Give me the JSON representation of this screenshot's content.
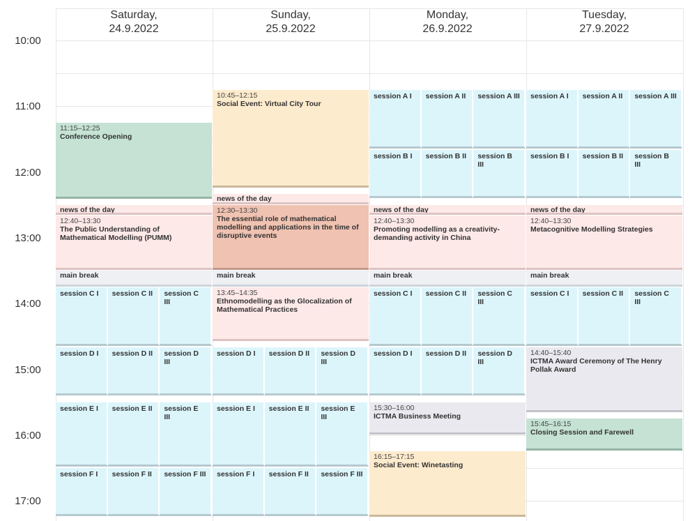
{
  "hours": [
    "10:00",
    "11:00",
    "12:00",
    "13:00",
    "14:00",
    "15:00",
    "16:00",
    "17:00"
  ],
  "days": [
    {
      "weekday": "Saturday,",
      "date": "24.9.2022"
    },
    {
      "weekday": "Sunday,",
      "date": "25.9.2022"
    },
    {
      "weekday": "Monday,",
      "date": "26.9.2022"
    },
    {
      "weekday": "Tuesday,",
      "date": "27.9.2022"
    }
  ],
  "events": [
    {
      "day": 0,
      "start": "11:15",
      "end": "12:25",
      "time": "11:15–12:25",
      "title": "Conference Opening",
      "color": "green"
    },
    {
      "day": 0,
      "start": "12:30",
      "end": "12:40",
      "time": "",
      "title": "news of the day",
      "color": "pink"
    },
    {
      "day": 0,
      "start": "12:40",
      "end": "13:30",
      "time": "12:40–13:30",
      "title": "The Public Understanding of Mathematical Modelling (PUMM)",
      "color": "pink"
    },
    {
      "day": 0,
      "start": "13:30",
      "end": "13:45",
      "time": "",
      "title": "main break",
      "color": "lightgray"
    },
    {
      "day": 1,
      "start": "10:45",
      "end": "12:15",
      "time": "10:45–12:15",
      "title": "Social Event: Virtual City Tour",
      "color": "orange"
    },
    {
      "day": 1,
      "start": "12:20",
      "end": "12:30",
      "time": "",
      "title": "news of the day",
      "color": "pink"
    },
    {
      "day": 1,
      "start": "12:30",
      "end": "13:30",
      "time": "12:30–13:30",
      "title": "The essential role of mathematical modelling and applications in the time of disruptive events",
      "color": "salmon"
    },
    {
      "day": 1,
      "start": "13:30",
      "end": "13:45",
      "time": "",
      "title": "main break",
      "color": "lightgray"
    },
    {
      "day": 1,
      "start": "13:45",
      "end": "14:35",
      "time": "13:45–14:35",
      "title": "Ethnomodelling as the Glocalization of Mathematical Practices",
      "color": "pink"
    },
    {
      "day": 2,
      "start": "12:30",
      "end": "12:40",
      "time": "",
      "title": "news of the day",
      "color": "pink"
    },
    {
      "day": 2,
      "start": "12:40",
      "end": "13:30",
      "time": "12:40–13:30",
      "title": "Promoting modelling as a creativity-demanding activity in China",
      "color": "pink"
    },
    {
      "day": 2,
      "start": "13:30",
      "end": "13:45",
      "time": "",
      "title": "main break",
      "color": "lightgray"
    },
    {
      "day": 2,
      "start": "15:30",
      "end": "16:00",
      "time": "15:30–16:00",
      "title": "ICTMA Business Meeting",
      "color": "gray"
    },
    {
      "day": 2,
      "start": "16:15",
      "end": "17:15",
      "time": "16:15–17:15",
      "title": "Social Event: Winetasting",
      "color": "orange"
    },
    {
      "day": 3,
      "start": "12:30",
      "end": "12:40",
      "time": "",
      "title": "news of the day",
      "color": "pink"
    },
    {
      "day": 3,
      "start": "12:40",
      "end": "13:30",
      "time": "12:40–13:30",
      "title": "Metacognitive Modelling Strategies",
      "color": "pink"
    },
    {
      "day": 3,
      "start": "13:30",
      "end": "13:45",
      "time": "",
      "title": "main break",
      "color": "lightgray"
    },
    {
      "day": 3,
      "start": "14:40",
      "end": "15:40",
      "time": "14:40–15:40",
      "title": "ICTMA Award Ceremony of The Henry Pollak Award",
      "color": "gray"
    },
    {
      "day": 3,
      "start": "15:45",
      "end": "16:15",
      "time": "15:45–16:15",
      "title": "Closing Session and Farewell",
      "color": "green"
    }
  ],
  "session_blocks": [
    {
      "day": 2,
      "start": "10:45",
      "end": "11:40",
      "labels": [
        "session A I",
        "session A II",
        "session A III"
      ]
    },
    {
      "day": 2,
      "start": "11:40",
      "end": "12:25",
      "labels": [
        "session B I",
        "session B II",
        "session B III"
      ]
    },
    {
      "day": 3,
      "start": "10:45",
      "end": "11:40",
      "labels": [
        "session A I",
        "session A II",
        "session A III"
      ]
    },
    {
      "day": 3,
      "start": "11:40",
      "end": "12:25",
      "labels": [
        "session B I",
        "session B II",
        "session B III"
      ]
    },
    {
      "day": 0,
      "start": "13:45",
      "end": "14:40",
      "labels": [
        "session C I",
        "session C II",
        "session C III"
      ]
    },
    {
      "day": 2,
      "start": "13:45",
      "end": "14:40",
      "labels": [
        "session C I",
        "session C II",
        "session C III"
      ]
    },
    {
      "day": 3,
      "start": "13:45",
      "end": "14:40",
      "labels": [
        "session C I",
        "session C II",
        "session C III"
      ]
    },
    {
      "day": 0,
      "start": "14:40",
      "end": "15:25",
      "labels": [
        "session D I",
        "session D II",
        "session D III"
      ]
    },
    {
      "day": 1,
      "start": "14:40",
      "end": "15:25",
      "labels": [
        "session D I",
        "session D II",
        "session D III"
      ]
    },
    {
      "day": 2,
      "start": "14:40",
      "end": "15:25",
      "labels": [
        "session D I",
        "session D II",
        "session D III"
      ]
    },
    {
      "day": 0,
      "start": "15:30",
      "end": "16:30",
      "labels": [
        "session E I",
        "session E II",
        "session E III"
      ]
    },
    {
      "day": 1,
      "start": "15:30",
      "end": "16:30",
      "labels": [
        "session E I",
        "session E II",
        "session E III"
      ]
    },
    {
      "day": 0,
      "start": "16:30",
      "end": "17:15",
      "labels": [
        "session F I",
        "session F II",
        "session F III"
      ]
    },
    {
      "day": 1,
      "start": "16:30",
      "end": "17:15",
      "labels": [
        "session F I",
        "session F II",
        "session F III"
      ]
    }
  ],
  "colors": {
    "green": "#c5e2d5",
    "orange": "#fdebcd",
    "pink": "#fde9e8",
    "salmon": "#f0c2b1",
    "gray": "#e9e9ef",
    "lightgray": "#eef0f4",
    "session": "#dcf5fb"
  }
}
